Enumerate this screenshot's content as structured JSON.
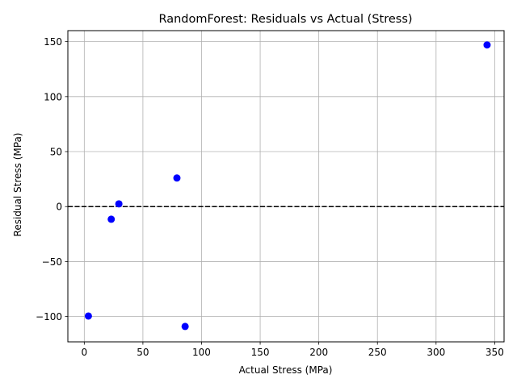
{
  "chart_data": {
    "type": "scatter",
    "title": "RandomForest: Residuals vs Actual (Stress)",
    "xlabel": "Actual Stress (MPa)",
    "ylabel": "Residual Stress (MPa)",
    "xlim": [
      -14,
      358
    ],
    "ylim": [
      -123,
      160
    ],
    "xticks": [
      0,
      50,
      100,
      150,
      200,
      250,
      300,
      350
    ],
    "yticks": [
      -100,
      -50,
      0,
      50,
      100,
      150
    ],
    "grid": true,
    "reference_line": {
      "y": 0,
      "style": "dashed",
      "color": "#000000"
    },
    "point_color": "#0000ff",
    "points": [
      {
        "x": 3.5,
        "y": -99.5
      },
      {
        "x": 23,
        "y": -11.5
      },
      {
        "x": 29.5,
        "y": 2.5
      },
      {
        "x": 79,
        "y": 26
      },
      {
        "x": 86,
        "y": -109
      },
      {
        "x": 343.5,
        "y": 147
      }
    ]
  }
}
